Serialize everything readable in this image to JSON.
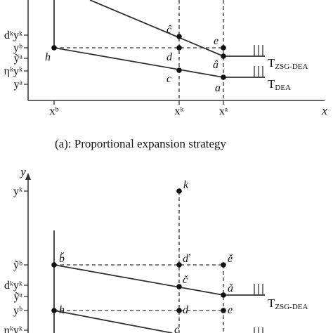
{
  "panel_a": {
    "y_ticks": [
      "dᵏyᵏ",
      "yᵇ",
      "ỹᵃ",
      "ηᵏyᵏ",
      "yᵃ"
    ],
    "x_ticks": [
      "xᵇ",
      "xᵏ",
      "xᵃ"
    ],
    "x_axis_label": "x",
    "points": {
      "h": "h",
      "c_hat": "ĉ",
      "d": "d",
      "e": "e",
      "a_hat": "â",
      "c": "c",
      "a": "a"
    },
    "frontier_zsg": "T",
    "frontier_zsg_sub": "ZSG-DEA",
    "frontier_dea": "T",
    "frontier_dea_sub": "DEA",
    "caption": "(a): Proportional expansion strategy"
  },
  "panel_b": {
    "y_axis_label": "y",
    "y_ticks": [
      "yᵏ",
      "ỹᵇ",
      "dᵏyᵏ",
      "ỹᵃ",
      "yᵇ",
      "ηᵏyᵏ"
    ],
    "points": {
      "k": "k",
      "b_check": "b̌",
      "d_check": "ď",
      "e_check": "ě",
      "c_check": "č",
      "a_check": "ǎ",
      "h": "h",
      "d": "d",
      "e": "e",
      "c": "c"
    },
    "frontier_zsg": "T",
    "frontier_zsg_sub": "ZSG-DEA"
  }
}
